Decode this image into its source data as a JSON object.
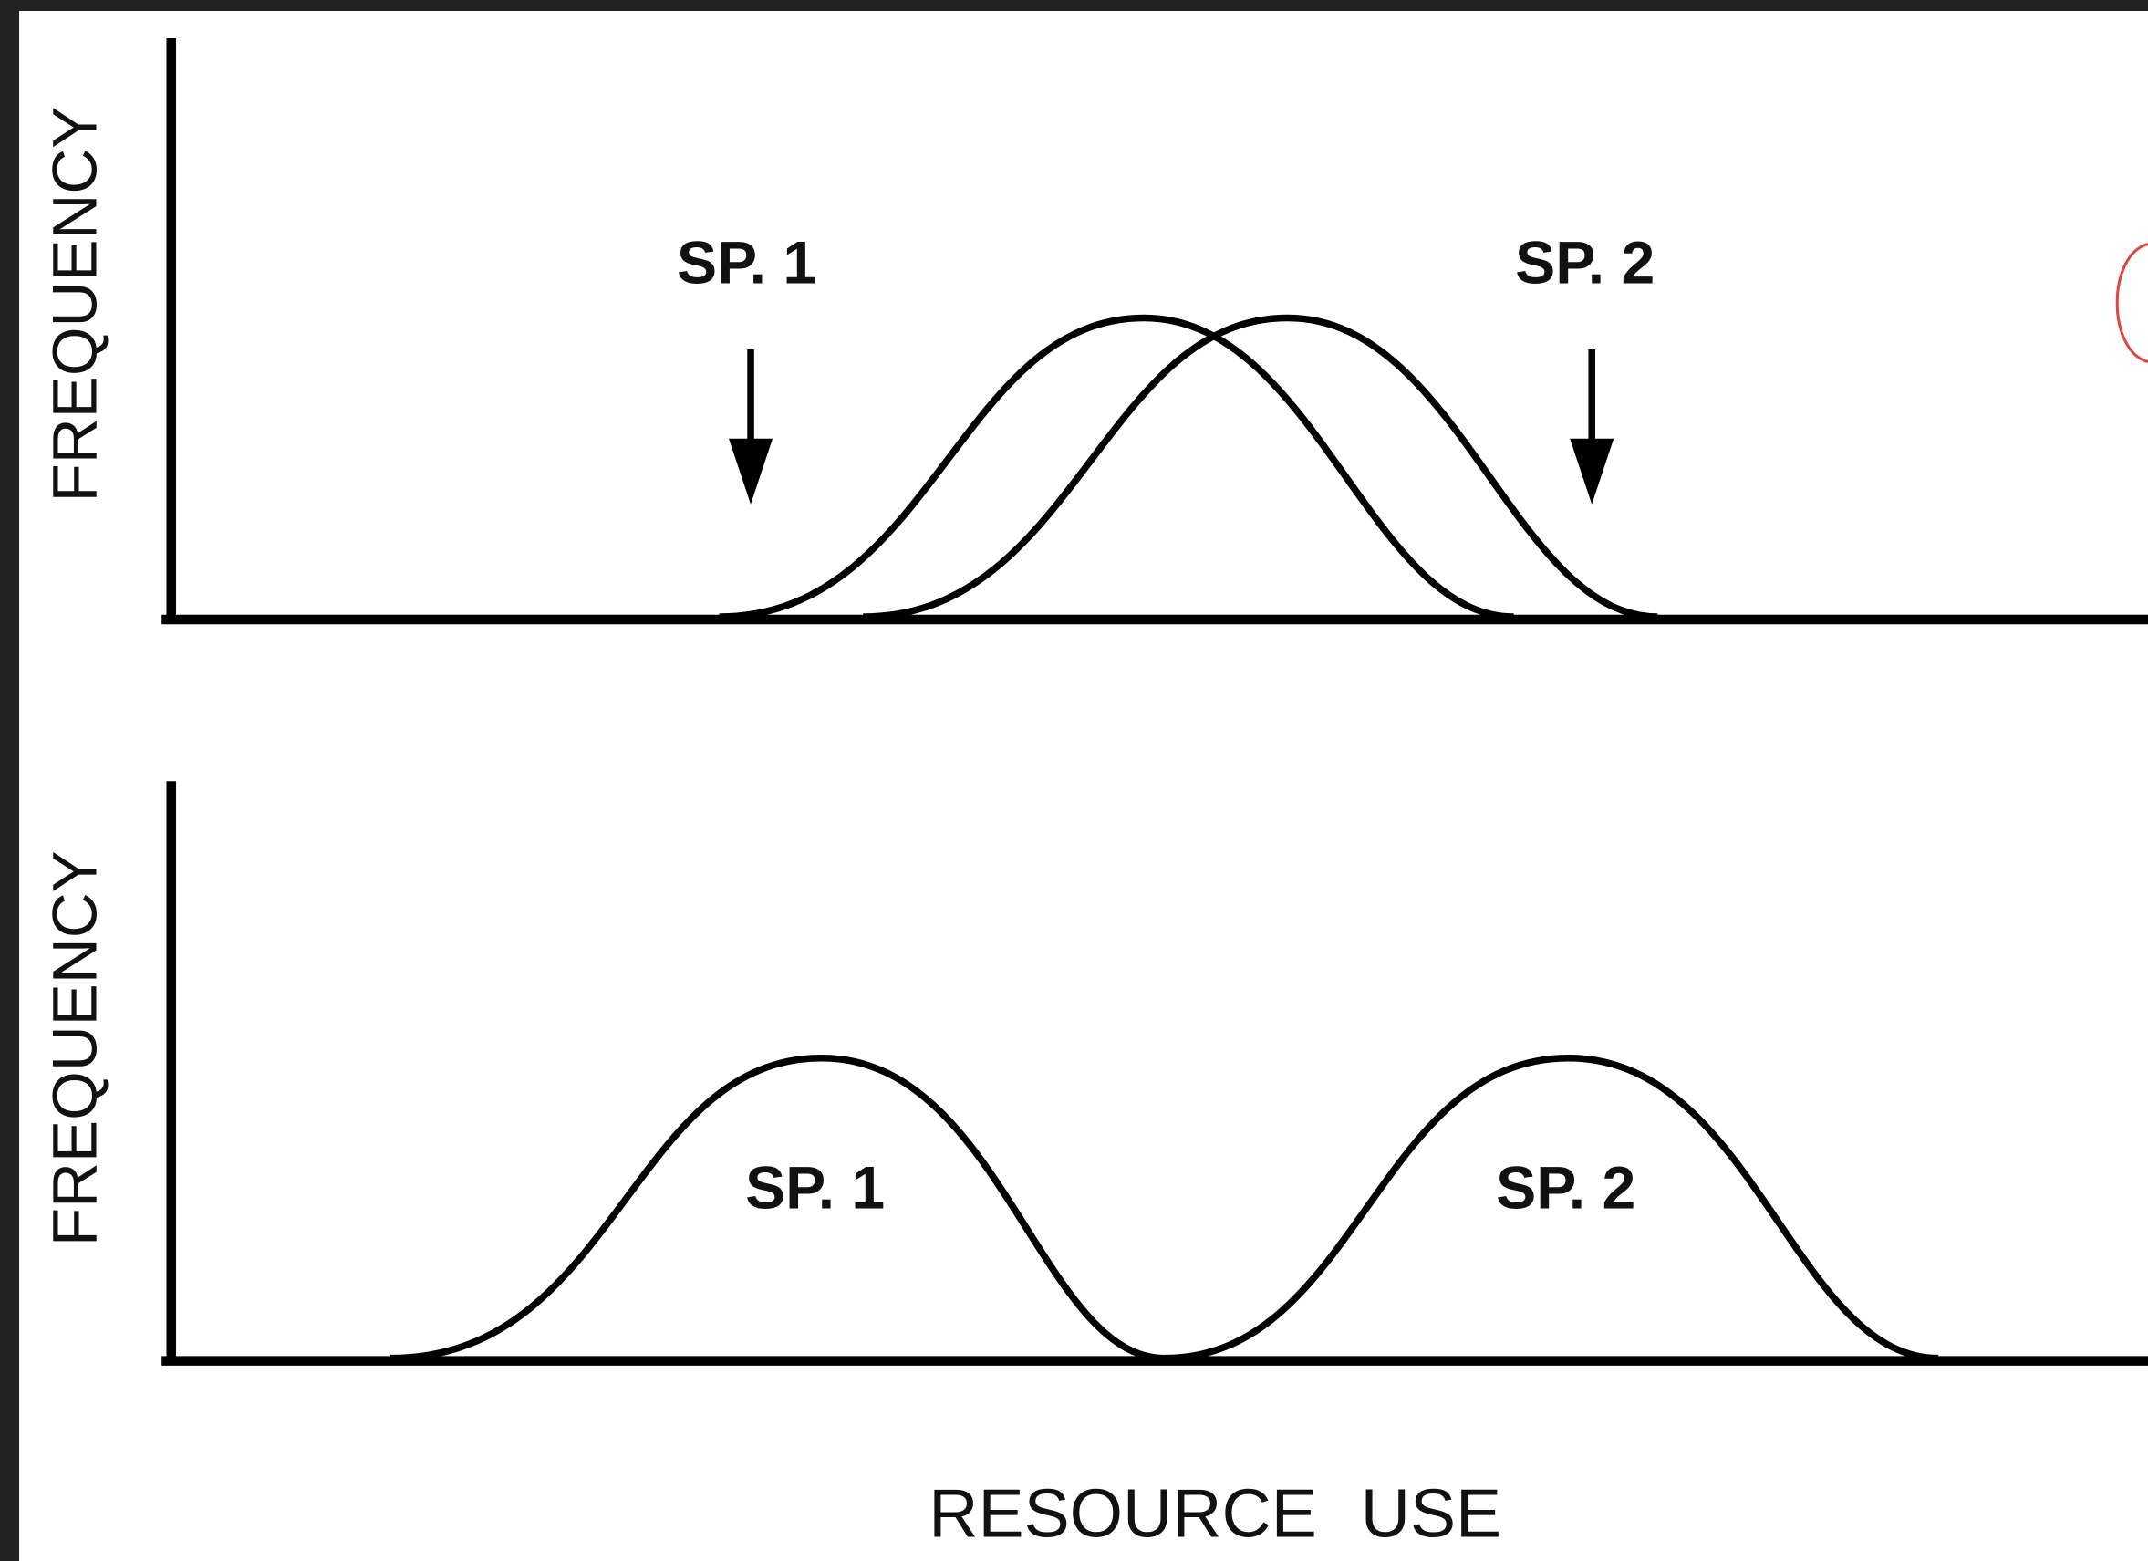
{
  "panels": [
    {
      "y_axis_label": "FREQUENCY",
      "labels": [
        "SP. 1",
        "SP. 2"
      ]
    },
    {
      "y_axis_label": "FREQUENCY",
      "labels": [
        "SP. 1",
        "SP. 2"
      ]
    }
  ],
  "x_axis_label": "RESOURCE USE"
}
